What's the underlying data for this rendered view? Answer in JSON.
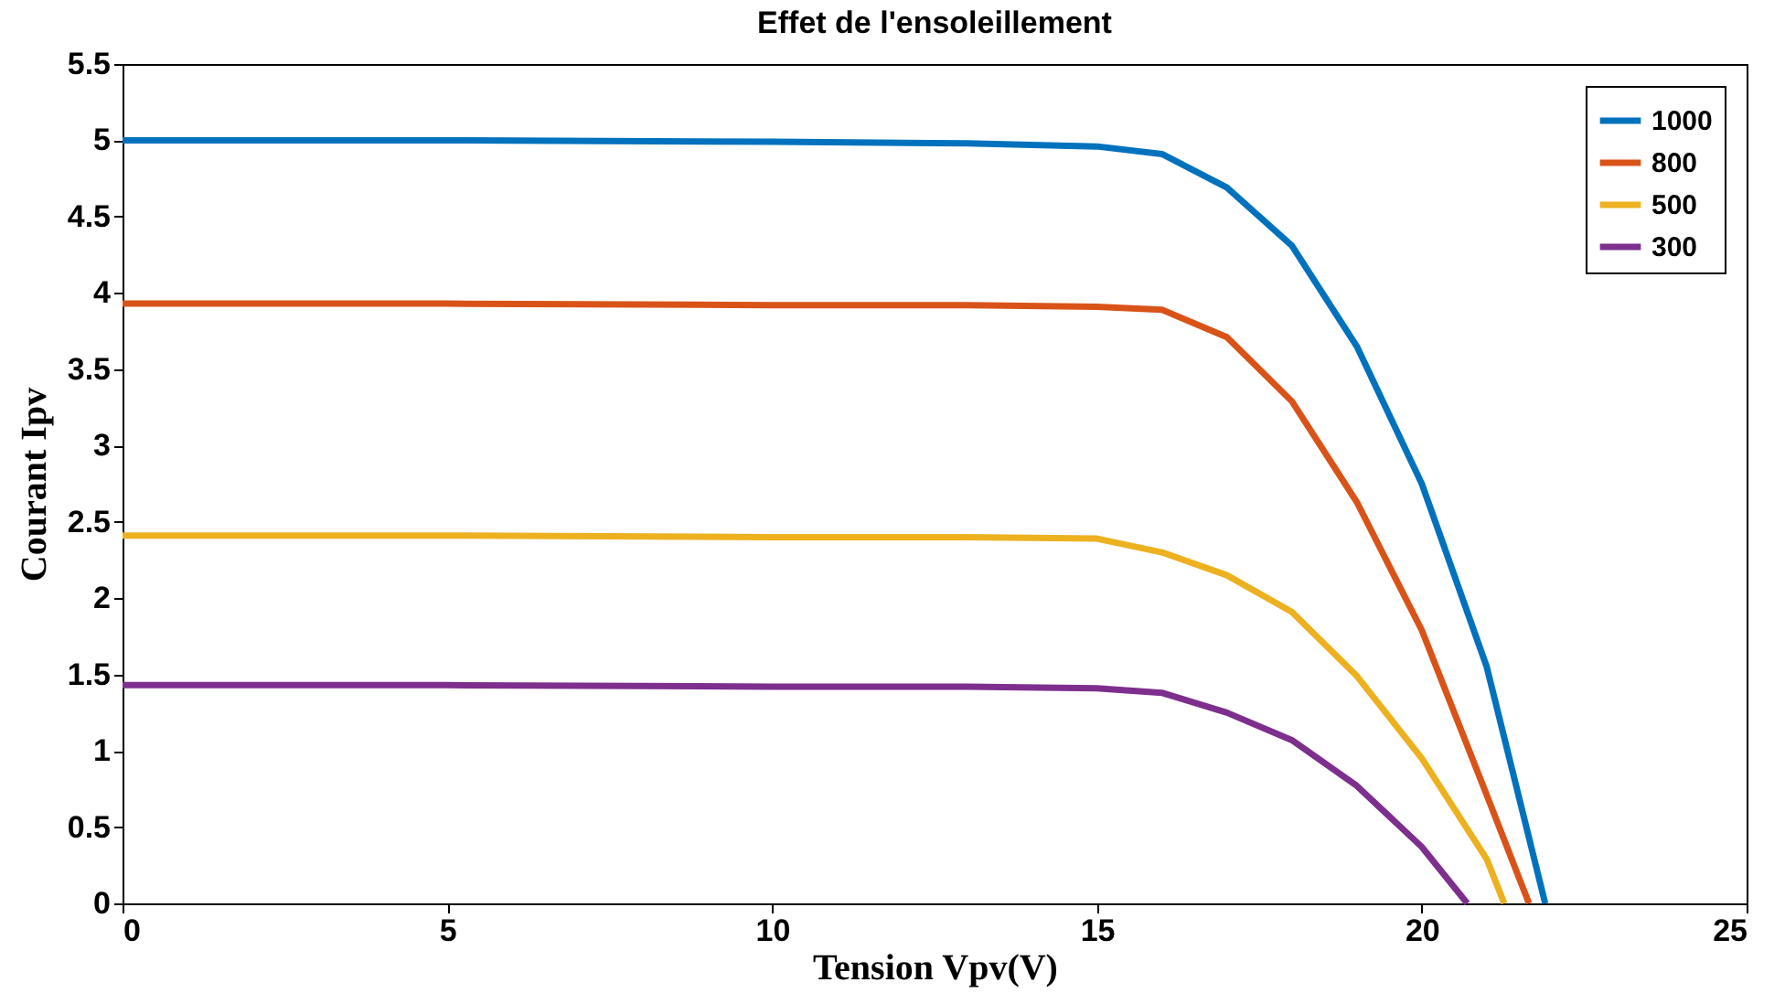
{
  "chart_data": {
    "type": "line",
    "title": "Effet de l'ensoleillement",
    "xlabel": "Tension Vpv(V)",
    "ylabel": "Courant Ipv",
    "xlim": [
      0,
      25
    ],
    "xticks": [
      0,
      5,
      10,
      15,
      20,
      25
    ],
    "ylim": [
      0,
      5.5
    ],
    "yticks": [
      0,
      0.5,
      1,
      1.5,
      2,
      2.5,
      3,
      3.5,
      4,
      4.5,
      5,
      5.5
    ],
    "grid": false,
    "legend": "top right",
    "line_style": "solid",
    "marker": "none",
    "series": [
      {
        "name": "1000",
        "color": "#0072bd",
        "x": [
          0,
          5,
          10,
          13,
          15,
          16,
          17,
          18,
          19,
          20,
          21,
          21.9
        ],
        "values": [
          5,
          5,
          4.99,
          4.98,
          4.96,
          4.91,
          4.69,
          4.31,
          3.65,
          2.75,
          1.55,
          0
        ]
      },
      {
        "name": "800",
        "color": "#d95319",
        "x": [
          0,
          5,
          10,
          13,
          15,
          16,
          17,
          18,
          19,
          20,
          21,
          21.65
        ],
        "values": [
          3.93,
          3.93,
          3.92,
          3.92,
          3.91,
          3.89,
          3.71,
          3.29,
          2.63,
          1.79,
          0.71,
          0
        ]
      },
      {
        "name": "500",
        "color": "#edb120",
        "x": [
          0,
          5,
          10,
          13,
          15,
          16,
          17,
          18,
          19,
          20,
          21,
          21.27
        ],
        "values": [
          2.41,
          2.41,
          2.4,
          2.4,
          2.39,
          2.3,
          2.15,
          1.91,
          1.49,
          0.95,
          0.29,
          0
        ]
      },
      {
        "name": "300",
        "color": "#7e2f8e",
        "x": [
          0,
          5,
          10,
          13,
          15,
          16,
          17,
          18,
          19,
          20,
          20.7
        ],
        "values": [
          1.43,
          1.43,
          1.42,
          1.42,
          1.41,
          1.38,
          1.25,
          1.07,
          0.77,
          0.37,
          0
        ]
      }
    ]
  }
}
